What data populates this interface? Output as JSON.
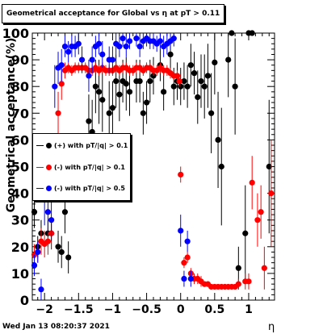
{
  "title": "Geometrical acceptance for Global vs  η at pT > 0.11",
  "datestamp": "Wed Jan 13 08:20:37 2021",
  "chart_data": {
    "type": "scatter",
    "xlabel": "η",
    "ylabel": "Geometrical acceptance(%)",
    "xlim": [
      -2.18,
      1.38
    ],
    "ylim": [
      0,
      100
    ],
    "xticks": [
      -2,
      -1.5,
      -1,
      -0.5,
      0,
      0.5,
      1
    ],
    "xtick_labels": [
      "−2",
      "−1.5",
      "−1",
      "−0.5",
      "0",
      "0.5",
      "1"
    ],
    "yticks": [
      0,
      10,
      20,
      30,
      40,
      50,
      60,
      70,
      80,
      90,
      100
    ],
    "grid": false,
    "legend_position": "left-middle",
    "series": [
      {
        "name": "(+) with pT/|q| > 0.1",
        "color": "#000000",
        "points": [
          [
            -2.15,
            33,
            6
          ],
          [
            -2.1,
            20,
            4
          ],
          [
            -2.05,
            25,
            5
          ],
          [
            -1.95,
            25,
            5
          ],
          [
            -1.9,
            25,
            6
          ],
          [
            -1.8,
            20,
            6
          ],
          [
            -1.75,
            18,
            6
          ],
          [
            -1.7,
            33,
            8
          ],
          [
            -1.65,
            16,
            6
          ],
          [
            -1.35,
            67,
            10
          ],
          [
            -1.3,
            63,
            12
          ],
          [
            -1.25,
            80,
            10
          ],
          [
            -1.2,
            78,
            12
          ],
          [
            -1.15,
            75,
            12
          ],
          [
            -1.05,
            70,
            12
          ],
          [
            -1.0,
            72,
            10
          ],
          [
            -0.95,
            82,
            10
          ],
          [
            -0.9,
            77,
            10
          ],
          [
            -0.85,
            82,
            8
          ],
          [
            -0.8,
            81,
            10
          ],
          [
            -0.75,
            78,
            9
          ],
          [
            -0.65,
            82,
            8
          ],
          [
            -0.6,
            82,
            8
          ],
          [
            -0.55,
            70,
            8
          ],
          [
            -0.5,
            74,
            8
          ],
          [
            -0.45,
            82,
            8
          ],
          [
            -0.4,
            84,
            7
          ],
          [
            -0.3,
            88,
            6
          ],
          [
            -0.25,
            78,
            7
          ],
          [
            -0.15,
            92,
            6
          ],
          [
            -0.1,
            80,
            7
          ],
          [
            -0.05,
            82,
            7
          ],
          [
            0.0,
            80,
            7
          ],
          [
            0.05,
            82,
            7
          ],
          [
            0.1,
            80,
            8
          ],
          [
            0.15,
            88,
            8
          ],
          [
            0.2,
            85,
            8
          ],
          [
            0.25,
            76,
            10
          ],
          [
            0.3,
            82,
            10
          ],
          [
            0.35,
            80,
            12
          ],
          [
            0.4,
            84,
            12
          ],
          [
            0.45,
            70,
            15
          ],
          [
            0.5,
            89,
            12
          ],
          [
            0.55,
            60,
            18
          ],
          [
            0.6,
            50,
            22
          ],
          [
            0.7,
            90,
            14
          ],
          [
            0.75,
            100,
            0
          ],
          [
            0.8,
            80,
            18
          ],
          [
            0.85,
            12,
            8
          ],
          [
            0.95,
            25,
            18
          ],
          [
            1.0,
            100,
            0
          ],
          [
            1.05,
            100,
            0
          ],
          [
            1.3,
            50,
            25
          ]
        ]
      },
      {
        "name": "(-) with pT/|q| > 0.1",
        "color": "#ff0000",
        "points": [
          [
            -2.15,
            17,
            4
          ],
          [
            -2.1,
            18,
            4
          ],
          [
            -2.05,
            22,
            5
          ],
          [
            -2.0,
            21,
            5
          ],
          [
            -1.95,
            22,
            5
          ],
          [
            -1.9,
            25,
            6
          ],
          [
            -1.8,
            70,
            8
          ],
          [
            -1.75,
            81,
            6
          ],
          [
            -1.7,
            86,
            3
          ],
          [
            -1.65,
            87,
            2
          ],
          [
            -1.6,
            86,
            2
          ],
          [
            -1.55,
            87,
            2
          ],
          [
            -1.5,
            87,
            2
          ],
          [
            -1.45,
            87,
            2
          ],
          [
            -1.4,
            87,
            2
          ],
          [
            -1.35,
            86,
            2
          ],
          [
            -1.3,
            86,
            2
          ],
          [
            -1.25,
            87,
            2
          ],
          [
            -1.2,
            86,
            2
          ],
          [
            -1.15,
            87,
            2
          ],
          [
            -1.1,
            86,
            2
          ],
          [
            -1.05,
            86,
            2
          ],
          [
            -1.0,
            86,
            2
          ],
          [
            -0.95,
            87,
            2
          ],
          [
            -0.9,
            86,
            2
          ],
          [
            -0.85,
            87,
            2
          ],
          [
            -0.8,
            87,
            2
          ],
          [
            -0.75,
            86,
            2
          ],
          [
            -0.7,
            86,
            2
          ],
          [
            -0.65,
            87,
            2
          ],
          [
            -0.6,
            87,
            2
          ],
          [
            -0.55,
            86,
            2
          ],
          [
            -0.5,
            87,
            2
          ],
          [
            -0.45,
            87,
            2
          ],
          [
            -0.4,
            86,
            2
          ],
          [
            -0.35,
            86,
            2
          ],
          [
            -0.3,
            87,
            2
          ],
          [
            -0.25,
            86,
            2
          ],
          [
            -0.2,
            86,
            2
          ],
          [
            -0.15,
            85,
            2
          ],
          [
            -0.1,
            84,
            2
          ],
          [
            -0.05,
            84,
            2
          ],
          [
            -0.02,
            82,
            2
          ],
          [
            0.0,
            47,
            3
          ],
          [
            0.05,
            14,
            2
          ],
          [
            0.1,
            16,
            2
          ],
          [
            0.15,
            10,
            2
          ],
          [
            0.2,
            8,
            2
          ],
          [
            0.25,
            8,
            2
          ],
          [
            0.3,
            7,
            2
          ],
          [
            0.35,
            6,
            1
          ],
          [
            0.4,
            6,
            1
          ],
          [
            0.45,
            5,
            1
          ],
          [
            0.5,
            5,
            1
          ],
          [
            0.55,
            5,
            1
          ],
          [
            0.6,
            5,
            1
          ],
          [
            0.65,
            5,
            1
          ],
          [
            0.7,
            5,
            1
          ],
          [
            0.75,
            5,
            1
          ],
          [
            0.8,
            5,
            1
          ],
          [
            0.85,
            6,
            2
          ],
          [
            0.95,
            7,
            3
          ],
          [
            1.0,
            7,
            3
          ],
          [
            1.05,
            44,
            10
          ],
          [
            1.13,
            30,
            10
          ],
          [
            1.18,
            33,
            10
          ],
          [
            1.23,
            12,
            8
          ],
          [
            1.33,
            40,
            20
          ]
        ]
      },
      {
        "name": "(-) with pT/|q| > 0.5",
        "color": "#0000ff",
        "points": [
          [
            -2.15,
            13,
            4
          ],
          [
            -2.1,
            18,
            4
          ],
          [
            -2.05,
            4,
            4
          ],
          [
            -2.0,
            38,
            10
          ],
          [
            -1.95,
            33,
            8
          ],
          [
            -1.9,
            30,
            8
          ],
          [
            -1.85,
            80,
            8
          ],
          [
            -1.8,
            87,
            6
          ],
          [
            -1.75,
            88,
            6
          ],
          [
            -1.7,
            95,
            4
          ],
          [
            -1.65,
            93,
            4
          ],
          [
            -1.6,
            95,
            4
          ],
          [
            -1.55,
            95,
            4
          ],
          [
            -1.5,
            96,
            4
          ],
          [
            -1.45,
            90,
            5
          ],
          [
            -1.35,
            84,
            6
          ],
          [
            -1.3,
            90,
            5
          ],
          [
            -1.25,
            95,
            4
          ],
          [
            -1.2,
            96,
            4
          ],
          [
            -1.15,
            92,
            5
          ],
          [
            -1.05,
            90,
            5
          ],
          [
            -1.0,
            90,
            5
          ],
          [
            -0.95,
            96,
            4
          ],
          [
            -0.9,
            95,
            4
          ],
          [
            -0.85,
            98,
            3
          ],
          [
            -0.8,
            95,
            4
          ],
          [
            -0.75,
            97,
            3
          ],
          [
            -0.65,
            98,
            3
          ],
          [
            -0.6,
            95,
            4
          ],
          [
            -0.55,
            97,
            3
          ],
          [
            -0.5,
            98,
            3
          ],
          [
            -0.45,
            97,
            3
          ],
          [
            -0.4,
            97,
            3
          ],
          [
            -0.35,
            96,
            3
          ],
          [
            -0.3,
            97,
            3
          ],
          [
            -0.25,
            95,
            4
          ],
          [
            -0.2,
            96,
            4
          ],
          [
            -0.15,
            97,
            3
          ],
          [
            -0.1,
            98,
            3
          ],
          [
            0.0,
            26,
            6
          ],
          [
            0.05,
            8,
            3
          ],
          [
            0.1,
            22,
            4
          ],
          [
            0.15,
            8,
            3
          ]
        ]
      }
    ]
  }
}
